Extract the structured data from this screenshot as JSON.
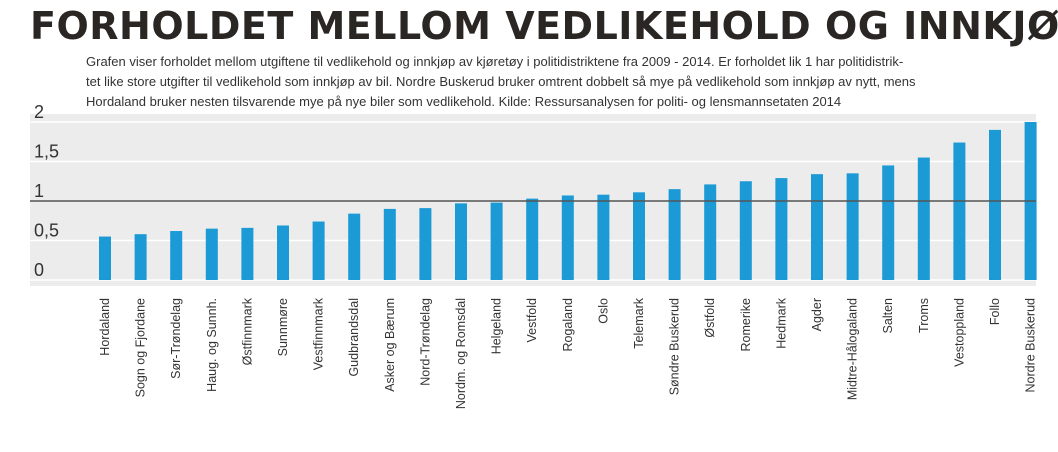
{
  "title": "FORHOLDET MELLOM VEDLIKEHOLD OG INNKJØP",
  "description": [
    "Grafen viser forholdet mellom utgiftene til vedlikehold og innkjøp av kjøretøy i politidistriktene fra 2009 - 2014. Er forholdet lik 1 har politidistrik-",
    "tet like store utgifter til vedlikehold som innkjøp av bil. Nordre Buskerud bruker omtrent dobbelt så mye på vedlikehold som innkjøp av nytt, mens",
    "Hordaland bruker nesten tilsvarende mye på nye biler som vedlikehold. Kilde: Ressursanalysen for politi- og lensmannsetaten 2014"
  ],
  "colors": {
    "bar": "#1b9ad6",
    "background": "#ececec",
    "grid": "#ffffff",
    "reference_line": "#555555"
  },
  "chart_data": {
    "type": "bar",
    "categories": [
      "Hordaland",
      "Sogn og Fjordane",
      "Sør-Trøndelag",
      "Haug. og Sunnh.",
      "Østfinnmark",
      "Sunnmøre",
      "Vestfinnmark",
      "Gudbrandsdal",
      "Asker og Bærum",
      "Nord-Trøndelag",
      "Nordm. og Romsdal",
      "Helgeland",
      "Vestfold",
      "Rogaland",
      "Oslo",
      "Telemark",
      "Søndre Buskerud",
      "Østfold",
      "Romerike",
      "Hedmark",
      "Agder",
      "Midtre-Hålogaland",
      "Salten",
      "Troms",
      "Vestoppland",
      "Follo",
      "Nordre Buskerud"
    ],
    "values": [
      0.55,
      0.58,
      0.62,
      0.65,
      0.66,
      0.69,
      0.74,
      0.84,
      0.9,
      0.91,
      0.97,
      0.98,
      1.03,
      1.07,
      1.08,
      1.11,
      1.15,
      1.21,
      1.25,
      1.29,
      1.34,
      1.35,
      1.45,
      1.55,
      1.74,
      1.9,
      2.0
    ],
    "ytick_labels": [
      "0",
      "0,5",
      "1",
      "1,5",
      "2"
    ],
    "yticks": [
      0,
      0.5,
      1,
      1.5,
      2
    ],
    "ylim": [
      0,
      2
    ],
    "reference_value": 1,
    "grid": true,
    "legend": "none"
  }
}
